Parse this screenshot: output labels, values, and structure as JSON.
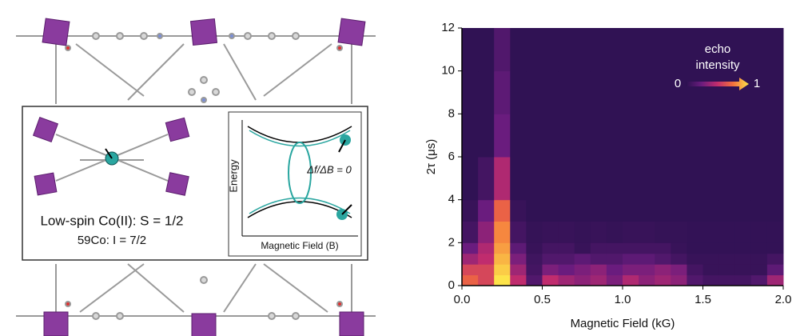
{
  "figure": {
    "inset": {
      "spin_label": "Low-spin Co(II): S = 1/2",
      "nuclear_label": "59Co: I = 7/2",
      "energy_axis": "Energy",
      "field_axis": "Magnetic Field (B)",
      "condition": "Δf/ΔB = 0"
    }
  },
  "chart_data": {
    "type": "heatmap",
    "xlabel": "Magnetic Field (kG)",
    "ylabel": "2τ (μs)",
    "xlim": [
      0,
      2
    ],
    "ylim": [
      0,
      12
    ],
    "xticks": [
      {
        "value": 0,
        "label": "0.0"
      },
      {
        "value": 0.5,
        "label": "0.5"
      },
      {
        "value": 1,
        "label": "1.0"
      },
      {
        "value": 1.5,
        "label": "1.5"
      },
      {
        "value": 2,
        "label": "2.0"
      }
    ],
    "yticks": [
      0,
      2,
      4,
      6,
      8,
      10,
      12
    ],
    "xbins": [
      0,
      0.1,
      0.2,
      0.3,
      0.4,
      0.5,
      0.6,
      0.7,
      0.8,
      0.9,
      1,
      1.1,
      1.2,
      1.3,
      1.4,
      1.5,
      1.6,
      1.7,
      1.8,
      1.9,
      2
    ],
    "ybins": [
      0,
      0.5,
      1,
      1.5,
      2,
      3,
      4,
      6,
      8,
      10,
      12
    ],
    "values": [
      [
        0.7,
        0.6,
        1.0,
        0.5,
        0.15,
        0.5,
        0.4,
        0.35,
        0.4,
        0.3,
        0.45,
        0.35,
        0.4,
        0.35,
        0.15,
        0.1,
        0.1,
        0.1,
        0.15,
        0.4
      ],
      [
        0.6,
        0.6,
        0.95,
        0.4,
        0.1,
        0.3,
        0.25,
        0.3,
        0.35,
        0.25,
        0.3,
        0.3,
        0.35,
        0.3,
        0.1,
        0.05,
        0.05,
        0.05,
        0.05,
        0.2
      ],
      [
        0.4,
        0.5,
        0.9,
        0.3,
        0.08,
        0.15,
        0.15,
        0.2,
        0.15,
        0.15,
        0.2,
        0.2,
        0.15,
        0.1,
        0.05,
        0.05,
        0.05,
        0.05,
        0.05,
        0.1
      ],
      [
        0.25,
        0.45,
        0.85,
        0.2,
        0.05,
        0.1,
        0.1,
        0.05,
        0.1,
        0.1,
        0.1,
        0.1,
        0.1,
        0.05,
        0.03,
        0.03,
        0.03,
        0.03,
        0.03,
        0.03
      ],
      [
        0.1,
        0.35,
        0.8,
        0.1,
        0.04,
        0.05,
        0.05,
        0.04,
        0.05,
        0.04,
        0.05,
        0.05,
        0.04,
        0.04,
        0.03,
        0.03,
        0.03,
        0.03,
        0.03,
        0.03
      ],
      [
        0.05,
        0.25,
        0.7,
        0.05,
        0.02,
        0.02,
        0.02,
        0.02,
        0.02,
        0.02,
        0.02,
        0.02,
        0.02,
        0.02,
        0.02,
        0.02,
        0.02,
        0.02,
        0.02,
        0.02
      ],
      [
        0.02,
        0.1,
        0.45,
        0.02,
        0.02,
        0.02,
        0.02,
        0.02,
        0.02,
        0.02,
        0.02,
        0.02,
        0.02,
        0.02,
        0.02,
        0.02,
        0.02,
        0.02,
        0.02,
        0.02
      ],
      [
        0.02,
        0.02,
        0.25,
        0.02,
        0.02,
        0.02,
        0.02,
        0.02,
        0.02,
        0.02,
        0.02,
        0.02,
        0.02,
        0.02,
        0.02,
        0.02,
        0.02,
        0.02,
        0.02,
        0.02
      ],
      [
        0.02,
        0.02,
        0.2,
        0.02,
        0.02,
        0.02,
        0.02,
        0.02,
        0.02,
        0.02,
        0.02,
        0.02,
        0.02,
        0.02,
        0.02,
        0.02,
        0.02,
        0.02,
        0.02,
        0.02
      ],
      [
        0.02,
        0.02,
        0.15,
        0.02,
        0.02,
        0.02,
        0.02,
        0.02,
        0.02,
        0.02,
        0.02,
        0.02,
        0.02,
        0.02,
        0.02,
        0.02,
        0.02,
        0.02,
        0.02,
        0.02
      ]
    ],
    "colorscale": [
      "#2b1150",
      "#6a1c7e",
      "#c02c6e",
      "#f4703c",
      "#fde34a"
    ],
    "colorbar": {
      "title": "echo intensity",
      "clim": [
        0,
        1
      ],
      "ticks": [
        0,
        1
      ]
    }
  }
}
